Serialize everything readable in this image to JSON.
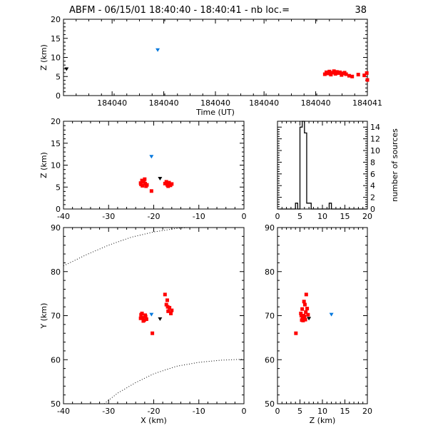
{
  "figure": {
    "title": "ABFM - 06/15/01 18:40:40 - 18:40:41 - nb loc.=",
    "count": "38"
  },
  "colors": {
    "red": "#ff0000",
    "blue": "#0077dd",
    "black": "#000000"
  },
  "chart_data": [
    {
      "id": "time_z",
      "type": "scatter",
      "xlabel": "Time (UT)",
      "ylabel": "Z (km)",
      "xlim": [
        0,
        1
      ],
      "ylim": [
        0,
        20
      ],
      "x_tick_labels": [
        "184040",
        "184040",
        "184040",
        "184040",
        "184040",
        "184041"
      ],
      "y_ticks": [
        0,
        5,
        10,
        15,
        20
      ],
      "series": [
        {
          "color": "red",
          "marker": "square",
          "points": [
            [
              0.86,
              5.6
            ],
            [
              0.865,
              6.1
            ],
            [
              0.87,
              5.8
            ],
            [
              0.875,
              6.3
            ],
            [
              0.88,
              5.5
            ],
            [
              0.885,
              6.0
            ],
            [
              0.89,
              6.4
            ],
            [
              0.895,
              5.7
            ],
            [
              0.9,
              6.2
            ],
            [
              0.905,
              5.9
            ],
            [
              0.91,
              6.1
            ],
            [
              0.915,
              5.4
            ],
            [
              0.92,
              5.8
            ],
            [
              0.925,
              6.0
            ],
            [
              0.93,
              5.6
            ],
            [
              0.94,
              5.2
            ],
            [
              0.95,
              5.0
            ],
            [
              0.97,
              5.5
            ],
            [
              0.99,
              5.3
            ],
            [
              1.0,
              4.1
            ],
            [
              0.998,
              5.9
            ]
          ]
        },
        {
          "color": "blue",
          "marker": "triangle",
          "points": [
            [
              0.31,
              12.0
            ]
          ]
        },
        {
          "color": "black",
          "marker": "triangle",
          "points": [
            [
              0.01,
              7.0
            ]
          ]
        }
      ]
    },
    {
      "id": "x_z",
      "type": "scatter",
      "xlabel": "",
      "ylabel": "Z (km)",
      "xlim": [
        -40,
        0
      ],
      "ylim": [
        0,
        20
      ],
      "x_ticks": [
        -40,
        -30,
        -20,
        -10,
        0
      ],
      "y_ticks": [
        0,
        5,
        10,
        15,
        20
      ],
      "series": [
        {
          "color": "red",
          "marker": "square",
          "points": [
            [
              -22.8,
              5.6
            ],
            [
              -22.5,
              5.3
            ],
            [
              -22.2,
              6.2
            ],
            [
              -21.9,
              5.8
            ],
            [
              -22.6,
              6.5
            ],
            [
              -21.7,
              5.2
            ],
            [
              -22.9,
              5.9
            ],
            [
              -22.0,
              6.8
            ],
            [
              -21.5,
              5.5
            ],
            [
              -20.5,
              4.1
            ],
            [
              -17.5,
              5.8
            ],
            [
              -17.0,
              5.5
            ],
            [
              -16.6,
              6.0
            ],
            [
              -16.3,
              5.4
            ],
            [
              -16.0,
              5.7
            ],
            [
              -17.2,
              6.2
            ],
            [
              -16.8,
              5.2
            ]
          ]
        },
        {
          "color": "blue",
          "marker": "triangle",
          "points": [
            [
              -20.5,
              12.0
            ]
          ]
        },
        {
          "color": "black",
          "marker": "triangle",
          "points": [
            [
              -18.6,
              7.0
            ]
          ]
        }
      ]
    },
    {
      "id": "z_hist",
      "type": "bar",
      "ylabel": "number of sources",
      "xlim": [
        0,
        20
      ],
      "ylim": [
        0,
        15
      ],
      "x_ticks": [
        0,
        5,
        10,
        15,
        20
      ],
      "y_ticks": [
        0,
        2,
        4,
        6,
        8,
        10,
        12,
        14
      ],
      "bin_edges": [
        0,
        0.5,
        1,
        1.5,
        2,
        2.5,
        3,
        3.5,
        4,
        4.5,
        5,
        5.5,
        6,
        6.5,
        7,
        7.5,
        8,
        8.5,
        9,
        9.5,
        10,
        10.5,
        11,
        11.5,
        12,
        12.5,
        13,
        13.5,
        14,
        14.5,
        15,
        15.5,
        16,
        16.5,
        17,
        17.5,
        18,
        18.5,
        19,
        19.5,
        20
      ],
      "counts": [
        0,
        0,
        0,
        0,
        0,
        0,
        0,
        0,
        1,
        0,
        14,
        15,
        13,
        1,
        1,
        0,
        0,
        0,
        0,
        0,
        0,
        0,
        0,
        1,
        0,
        0,
        0,
        0,
        0,
        0,
        0,
        0,
        0,
        0,
        0,
        0,
        0,
        0,
        0,
        0
      ]
    },
    {
      "id": "x_y",
      "type": "scatter",
      "xlabel": "X (km)",
      "ylabel": "Y (km)",
      "xlim": [
        -40,
        0
      ],
      "ylim": [
        50,
        90
      ],
      "x_ticks": [
        -40,
        -30,
        -20,
        -10,
        0
      ],
      "y_ticks": [
        50,
        60,
        70,
        80,
        90
      ],
      "range_arcs": [
        [
          [
            -40,
            81.3
          ],
          [
            -35,
            83.8
          ],
          [
            -30,
            86.0
          ],
          [
            -25,
            87.8
          ],
          [
            -20,
            89.0
          ],
          [
            -15,
            89.8
          ],
          [
            -10,
            90.2
          ]
        ],
        [
          [
            -31,
            50
          ],
          [
            -28,
            52.4
          ],
          [
            -24,
            54.8
          ],
          [
            -20,
            56.8
          ],
          [
            -15,
            58.5
          ],
          [
            -10,
            59.4
          ],
          [
            -5,
            59.9
          ],
          [
            0,
            60.1
          ]
        ]
      ],
      "series": [
        {
          "color": "red",
          "marker": "square",
          "points": [
            [
              -22.8,
              70.2
            ],
            [
              -22.5,
              69.5
            ],
            [
              -22.1,
              69.0
            ],
            [
              -21.8,
              69.8
            ],
            [
              -22.6,
              70.5
            ],
            [
              -21.6,
              69.2
            ],
            [
              -22.3,
              68.8
            ],
            [
              -22.9,
              69.4
            ],
            [
              -21.9,
              70.1
            ],
            [
              -20.3,
              66.0
            ],
            [
              -16.8,
              71.0
            ],
            [
              -16.5,
              71.8
            ],
            [
              -16.2,
              70.5
            ],
            [
              -16.9,
              72.0
            ],
            [
              -17.2,
              72.5
            ],
            [
              -16.0,
              71.2
            ],
            [
              -17.5,
              74.8
            ],
            [
              -17.0,
              73.5
            ]
          ]
        },
        {
          "color": "blue",
          "marker": "triangle",
          "points": [
            [
              -20.5,
              70.3
            ]
          ]
        },
        {
          "color": "black",
          "marker": "triangle",
          "points": [
            [
              -18.6,
              69.3
            ]
          ]
        }
      ]
    },
    {
      "id": "z_y",
      "type": "scatter",
      "xlabel": "Z (km)",
      "ylabel": "",
      "xlim": [
        0,
        20
      ],
      "ylim": [
        50,
        90
      ],
      "x_ticks": [
        0,
        5,
        10,
        15,
        20
      ],
      "y_ticks": [
        50,
        60,
        70,
        80,
        90
      ],
      "series": [
        {
          "color": "red",
          "marker": "square",
          "points": [
            [
              5.2,
              70.5
            ],
            [
              5.5,
              71.5
            ],
            [
              5.8,
              70.0
            ],
            [
              5.6,
              69.2
            ],
            [
              6.0,
              69.8
            ],
            [
              6.3,
              70.8
            ],
            [
              5.4,
              69.0
            ],
            [
              6.1,
              72.5
            ],
            [
              5.9,
              73.2
            ],
            [
              6.4,
              74.8
            ],
            [
              6.6,
              71.6
            ],
            [
              5.7,
              68.9
            ],
            [
              6.2,
              69.1
            ],
            [
              4.1,
              66.0
            ],
            [
              6.8,
              70.2
            ],
            [
              5.3,
              70.0
            ]
          ]
        },
        {
          "color": "blue",
          "marker": "triangle",
          "points": [
            [
              12.0,
              70.3
            ]
          ]
        },
        {
          "color": "black",
          "marker": "triangle",
          "points": [
            [
              7.0,
              69.4
            ]
          ]
        }
      ]
    }
  ]
}
